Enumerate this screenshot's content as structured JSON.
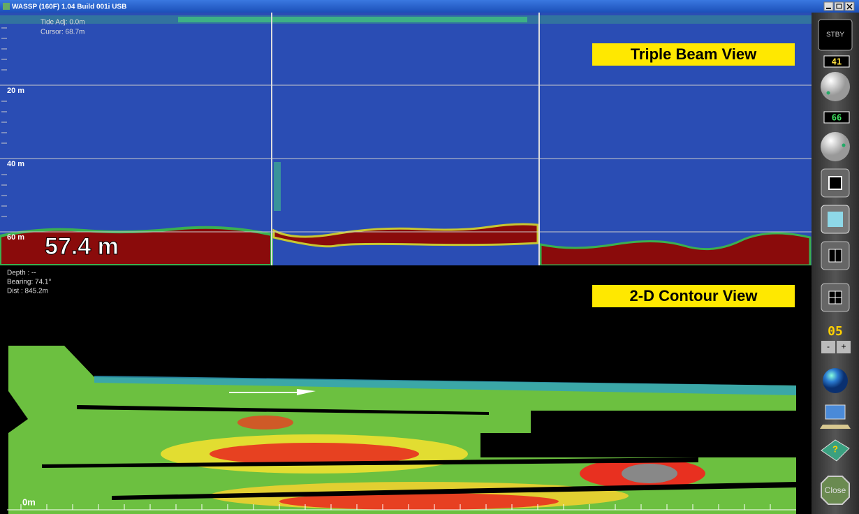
{
  "window": {
    "title": "WASSP (160F) 1.04 Build 001i USB"
  },
  "triple_beam": {
    "label": "Triple Beam View",
    "tide_adj": "Tide Adj: 0.0m",
    "cursor": "Cursor: 68.7m",
    "depth_labels": [
      "20 m",
      "40 m",
      "60 m"
    ],
    "depth_readout": "57.4 m"
  },
  "contour": {
    "label": "2-D Contour View",
    "depth": "Depth : --",
    "bearing": "Bearing: 74.1°",
    "dist": "Dist : 845.2m",
    "scale_label": "0m"
  },
  "sidebar": {
    "mode": "STBY",
    "gain_1": "41",
    "gain_2": "66",
    "zoom": "05",
    "minus": "-",
    "plus": "+",
    "close": "Close"
  }
}
